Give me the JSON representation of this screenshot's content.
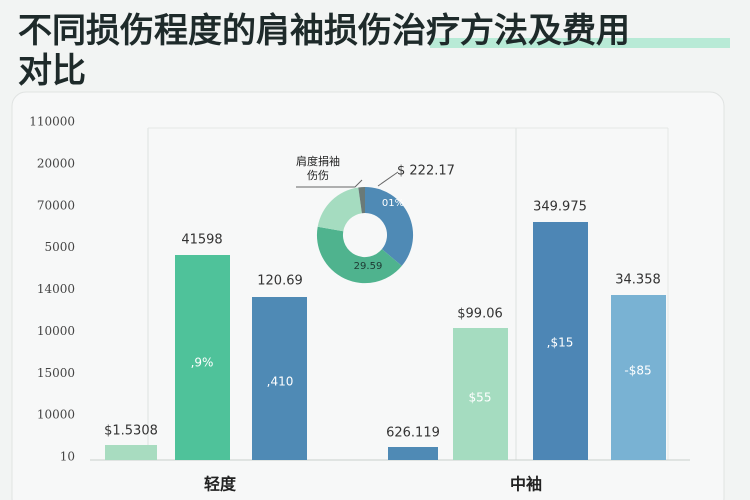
{
  "header": {
    "title_lines": [
      "不同损伤程度的肩袖损伤治疗方法及费用",
      "对比"
    ]
  },
  "y_axis_labels": [
    "110000",
    "20000",
    "70000",
    "5000",
    "14000",
    "10000",
    "15000",
    "10000",
    "10"
  ],
  "groups": [
    {
      "label": "轻度",
      "bars": [
        {
          "top_label": "$1.5308",
          "inner_label": ""
        },
        {
          "top_label": "41598",
          "inner_label": ",9%"
        },
        {
          "top_label": "120.69",
          "inner_label": ",410"
        }
      ]
    },
    {
      "label": "中袖",
      "bars": [
        {
          "top_label": "626.119",
          "inner_label": ""
        },
        {
          "top_label": "$99.06",
          "inner_label": "$55"
        },
        {
          "top_label": "349.975",
          "inner_label": ",$15"
        },
        {
          "top_label": "34.358",
          "inner_label": "-$85"
        }
      ]
    }
  ],
  "donut": {
    "callout_lines": [
      "肩度捐袖",
      "伤伤"
    ],
    "side_label": "$ 222.17",
    "segment_labels": [
      "01%",
      "29.59"
    ]
  }
}
